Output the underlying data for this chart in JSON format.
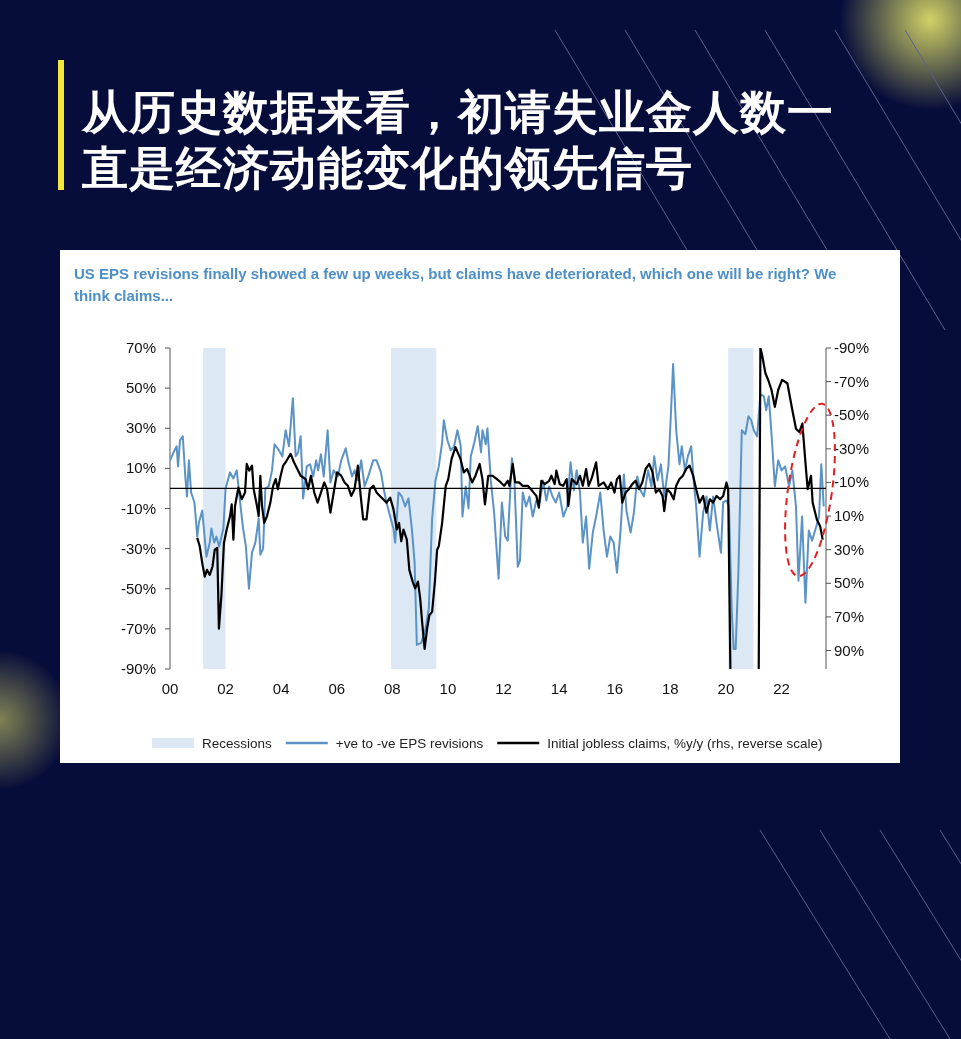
{
  "chart_data": {
    "type": "line",
    "title": "从历史数据来看，初请失业金人数一直是经济动能变化的领先信号",
    "subtitle": "US EPS revisions finally showed a few up weeks, but claims have deteriorated, which one will be right? We think claims...",
    "xlim": [
      2000,
      2023.6
    ],
    "xticks": [
      {
        "value": 2000,
        "label": "00"
      },
      {
        "value": 2002,
        "label": "02"
      },
      {
        "value": 2004,
        "label": "04"
      },
      {
        "value": 2006,
        "label": "06"
      },
      {
        "value": 2008,
        "label": "08"
      },
      {
        "value": 2010,
        "label": "10"
      },
      {
        "value": 2012,
        "label": "12"
      },
      {
        "value": 2014,
        "label": "14"
      },
      {
        "value": 2016,
        "label": "16"
      },
      {
        "value": 2018,
        "label": "18"
      },
      {
        "value": 2020,
        "label": "20"
      },
      {
        "value": 2022,
        "label": "22"
      }
    ],
    "ylim": [
      -90,
      70
    ],
    "yticks": [
      {
        "value": 70,
        "label": "70%"
      },
      {
        "value": 50,
        "label": "50%"
      },
      {
        "value": 30,
        "label": "30%"
      },
      {
        "value": 10,
        "label": "10%"
      },
      {
        "value": -10,
        "label": "-10%"
      },
      {
        "value": -30,
        "label": "-30%"
      },
      {
        "value": -50,
        "label": "-50%"
      },
      {
        "value": -70,
        "label": "-70%"
      },
      {
        "value": -90,
        "label": "-90%"
      }
    ],
    "y2lim": [
      101,
      -90
    ],
    "y2ticks": [
      {
        "value": -90,
        "label": "-90%"
      },
      {
        "value": -70,
        "label": "-70%"
      },
      {
        "value": -50,
        "label": "-50%"
      },
      {
        "value": -30,
        "label": "-30%"
      },
      {
        "value": -10,
        "label": "-10%"
      },
      {
        "value": 10,
        "label": "10%"
      },
      {
        "value": 30,
        "label": "30%"
      },
      {
        "value": 50,
        "label": "50%"
      },
      {
        "value": 70,
        "label": "70%"
      },
      {
        "value": 90,
        "label": "90%"
      }
    ],
    "bands": [
      {
        "axis": "x",
        "from": 2001.19,
        "to": 2002.0,
        "label": "Recessions",
        "color": "#dce9f5"
      },
      {
        "axis": "x",
        "from": 2007.95,
        "to": 2009.58,
        "color": "#dce9f5"
      },
      {
        "axis": "x",
        "from": 2020.08,
        "to": 2020.99,
        "color": "#dce9f5"
      }
    ],
    "ref_lines": [
      {
        "axis": "y",
        "value": 0,
        "color": "#000000"
      }
    ],
    "legend": "bottom",
    "series": [
      {
        "name": "+ve to -ve EPS revisions",
        "type": "line",
        "color": "#5b93c6",
        "x": [
          2000.0,
          2000.16,
          2000.24,
          2000.29,
          2000.36,
          2000.46,
          2000.55,
          2000.61,
          2000.68,
          2000.76,
          2000.88,
          2000.98,
          2001.04,
          2001.16,
          2001.31,
          2001.43,
          2001.49,
          2001.59,
          2001.67,
          2001.77,
          2001.92,
          2002.0,
          2002.16,
          2002.28,
          2002.4,
          2002.5,
          2002.62,
          2002.73,
          2002.84,
          2002.95,
          2003.07,
          2003.19,
          2003.25,
          2003.35,
          2003.43,
          2003.55,
          2003.67,
          2003.76,
          2003.92,
          2004.04,
          2004.16,
          2004.28,
          2004.42,
          2004.52,
          2004.61,
          2004.7,
          2004.79,
          2004.92,
          2005.04,
          2005.15,
          2005.26,
          2005.33,
          2005.43,
          2005.53,
          2005.67,
          2005.77,
          2005.89,
          2006.04,
          2006.16,
          2006.32,
          2006.42,
          2006.55,
          2006.64,
          2006.76,
          2006.88,
          2007.0,
          2007.13,
          2007.31,
          2007.43,
          2007.59,
          2007.67,
          2007.79,
          2007.92,
          2008.04,
          2008.1,
          2008.22,
          2008.34,
          2008.46,
          2008.58,
          2008.7,
          2008.8,
          2008.88,
          2009.04,
          2009.19,
          2009.31,
          2009.43,
          2009.55,
          2009.67,
          2009.79,
          2009.85,
          2009.98,
          2010.1,
          2010.22,
          2010.34,
          2010.46,
          2010.52,
          2010.64,
          2010.74,
          2010.82,
          2010.95,
          2011.07,
          2011.19,
          2011.24,
          2011.36,
          2011.42,
          2011.54,
          2011.66,
          2011.82,
          2011.94,
          2012.06,
          2012.15,
          2012.3,
          2012.39,
          2012.51,
          2012.59,
          2012.69,
          2012.81,
          2012.93,
          2013.05,
          2013.18,
          2013.3,
          2013.42,
          2013.54,
          2013.64,
          2013.76,
          2013.88,
          2014.0,
          2014.15,
          2014.29,
          2014.41,
          2014.53,
          2014.63,
          2014.75,
          2014.85,
          2014.97,
          2015.08,
          2015.21,
          2015.33,
          2015.48,
          2015.6,
          2015.72,
          2015.84,
          2015.96,
          2016.08,
          2016.21,
          2016.33,
          2016.42,
          2016.57,
          2016.69,
          2016.81,
          2016.93,
          2017.05,
          2017.2,
          2017.32,
          2017.42,
          2017.54,
          2017.66,
          2017.78,
          2017.93,
          2018.02,
          2018.1,
          2018.21,
          2018.33,
          2018.41,
          2018.53,
          2018.63,
          2018.75,
          2018.85,
          2018.93,
          2019.05,
          2019.18,
          2019.3,
          2019.42,
          2019.54,
          2019.66,
          2019.82,
          2019.9,
          2020.02,
          2020.11,
          2020.21,
          2020.28,
          2020.35,
          2020.45,
          2020.57,
          2020.7,
          2020.81,
          2020.91,
          2021.0,
          2021.12,
          2021.24,
          2021.36,
          2021.45,
          2021.54,
          2021.64,
          2021.76,
          2021.88,
          2022.0,
          2022.13,
          2022.27,
          2022.39,
          2022.52,
          2022.61,
          2022.74,
          2022.86,
          2022.98,
          2023.1,
          2023.25,
          2023.35,
          2023.43,
          2023.52
        ],
        "values": [
          14,
          19,
          21,
          11,
          24,
          26,
          6,
          -4,
          14,
          -2,
          -7,
          -24,
          -17,
          -11,
          -34,
          -27,
          -20,
          -27,
          -24,
          -29,
          -20,
          0,
          8,
          5,
          9,
          -4,
          -19,
          -29,
          -50,
          -32,
          -27,
          -15,
          -33,
          -30,
          0,
          1,
          9,
          22,
          19,
          16,
          29,
          21,
          45,
          16,
          18,
          26,
          -5,
          11,
          12,
          6,
          14,
          9,
          17,
          6,
          29,
          3,
          9,
          6,
          14,
          20,
          13,
          6,
          9,
          4,
          14,
          1,
          6,
          14,
          14,
          8,
          1,
          -7,
          -14,
          -20,
          -27,
          -2,
          -4,
          -9,
          -5,
          -20,
          -37,
          -78,
          -77,
          -70,
          -60,
          -15,
          4,
          11,
          23,
          34,
          24,
          19,
          21,
          29,
          21,
          -14,
          1,
          -10,
          16,
          23,
          31,
          18,
          29,
          22,
          30,
          4,
          -12,
          -45,
          -7,
          -24,
          -26,
          15,
          4,
          -39,
          -36,
          -2,
          -9,
          -4,
          -14,
          -6,
          -7,
          4,
          -6,
          1,
          -4,
          -7,
          -2,
          -14,
          -9,
          13,
          -1,
          9,
          -2,
          -27,
          -14,
          -40,
          -22,
          -14,
          -2,
          -21,
          -34,
          -24,
          -27,
          -42,
          -21,
          7,
          -11,
          -22,
          -12,
          6,
          -1,
          -4,
          9,
          1,
          16,
          4,
          12,
          -4,
          11,
          37,
          62,
          29,
          12,
          21,
          9,
          16,
          21,
          2,
          -9,
          -34,
          -12,
          -4,
          -21,
          -4,
          -17,
          -32,
          -7,
          -6,
          -9,
          -62,
          -80,
          -80,
          -41,
          29,
          27,
          36,
          34,
          29,
          26,
          47,
          46,
          39,
          46,
          27,
          1,
          14,
          9,
          11,
          1,
          9,
          -9,
          -46,
          -14,
          -57,
          -21,
          -26,
          -19,
          -14,
          12,
          -9
        ]
      },
      {
        "name": "Initial jobless claims, %y/y (rhs, reverse scale)",
        "type": "line",
        "color": "#000000",
        "axis": "y2",
        "x": [
          2000.98,
          2001.07,
          2001.16,
          2001.25,
          2001.33,
          2001.43,
          2001.53,
          2001.61,
          2001.7,
          2001.76,
          2001.85,
          2001.94,
          2002.04,
          2002.16,
          2002.22,
          2002.28,
          2002.34,
          2002.46,
          2002.58,
          2002.7,
          2002.76,
          2002.85,
          2002.95,
          2003.01,
          2003.13,
          2003.19,
          2003.25,
          2003.31,
          2003.39,
          2003.49,
          2003.61,
          2003.71,
          2003.8,
          2003.88,
          2003.98,
          2004.07,
          2004.16,
          2004.34,
          2004.46,
          2004.58,
          2004.7,
          2004.88,
          2004.97,
          2005.07,
          2005.19,
          2005.31,
          2005.43,
          2005.55,
          2005.65,
          2005.77,
          2005.89,
          2006.01,
          2006.16,
          2006.28,
          2006.4,
          2006.52,
          2006.64,
          2006.76,
          2006.86,
          2006.95,
          2007.07,
          2007.19,
          2007.32,
          2007.43,
          2007.55,
          2007.67,
          2007.79,
          2007.92,
          2008.04,
          2008.16,
          2008.24,
          2008.32,
          2008.4,
          2008.52,
          2008.61,
          2008.73,
          2008.82,
          2008.92,
          2009.0,
          2009.07,
          2009.16,
          2009.25,
          2009.33,
          2009.43,
          2009.53,
          2009.61,
          2009.67,
          2009.79,
          2009.92,
          2010.01,
          2010.13,
          2010.27,
          2010.45,
          2010.57,
          2010.69,
          2010.87,
          2010.99,
          2011.14,
          2011.24,
          2011.33,
          2011.45,
          2011.6,
          2011.76,
          2011.9,
          2012.02,
          2012.15,
          2012.21,
          2012.33,
          2012.42,
          2012.55,
          2012.69,
          2012.87,
          2013.03,
          2013.18,
          2013.27,
          2013.36,
          2013.48,
          2013.64,
          2013.72,
          2013.84,
          2013.9,
          2014.02,
          2014.15,
          2014.27,
          2014.33,
          2014.45,
          2014.63,
          2014.75,
          2014.85,
          2014.97,
          2015.06,
          2015.18,
          2015.33,
          2015.42,
          2015.6,
          2015.75,
          2015.87,
          2015.99,
          2016.08,
          2016.18,
          2016.27,
          2016.39,
          2016.51,
          2016.63,
          2016.75,
          2016.87,
          2016.99,
          2017.11,
          2017.24,
          2017.36,
          2017.48,
          2017.6,
          2017.72,
          2017.78,
          2017.88,
          2018.0,
          2018.12,
          2018.21,
          2018.33,
          2018.45,
          2018.57,
          2018.69,
          2018.82,
          2018.93,
          2019.05,
          2019.18,
          2019.3,
          2019.42,
          2019.54,
          2019.66,
          2019.79,
          2019.9,
          2020.02,
          2020.08,
          2020.16,
          2020.6,
          2021.18,
          2021.24,
          2021.3,
          2021.42,
          2021.52,
          2021.64,
          2021.76,
          2021.88,
          2022.02,
          2022.21,
          2022.39,
          2022.52,
          2022.64,
          2022.75,
          2022.86,
          2022.94,
          2023.06,
          2023.12,
          2023.27,
          2023.39,
          2023.48
        ],
        "values": [
          23,
          28,
          38,
          46,
          42,
          45,
          40,
          30,
          29,
          77,
          57,
          26,
          18,
          10,
          3,
          24,
          4,
          -7,
          0,
          -4,
          -21,
          -17,
          -20,
          -6,
          4,
          10,
          -14,
          4,
          14,
          10,
          2,
          -8,
          -12,
          -6,
          -14,
          -20,
          -22,
          -27,
          -22,
          -18,
          -14,
          -12,
          -6,
          -14,
          -4,
          2,
          -4,
          -10,
          -6,
          8,
          -4,
          -16,
          -14,
          -10,
          -8,
          -2,
          -6,
          -20,
          -2,
          12,
          12,
          -6,
          -8,
          -4,
          -2,
          0,
          2,
          -1,
          6,
          18,
          14,
          25,
          18,
          24,
          42,
          49,
          53,
          49,
          59,
          73,
          89,
          77,
          69,
          67,
          49,
          30,
          28,
          14,
          -8,
          -12,
          -24,
          -31,
          -24,
          -16,
          -18,
          -10,
          -14,
          -21,
          -12,
          3,
          -14,
          -14,
          -12,
          -10,
          -8,
          -11,
          -8,
          -21,
          -10,
          -10,
          -8,
          -8,
          -5,
          -2,
          5,
          -11,
          -9,
          -11,
          -14,
          -9,
          -17,
          -9,
          -8,
          -12,
          4,
          -12,
          -9,
          -14,
          -8,
          -18,
          -8,
          -13,
          -22,
          -8,
          -10,
          -6,
          -10,
          -4,
          -12,
          -14,
          2,
          -4,
          -6,
          -9,
          -11,
          -6,
          -10,
          -18,
          -21,
          -16,
          -4,
          -6,
          -2,
          7,
          -6,
          -4,
          0,
          -8,
          -12,
          -14,
          -18,
          -20,
          -14,
          -6,
          2,
          -2,
          8,
          0,
          2,
          -2,
          0,
          -2,
          -10,
          -6,
          101,
          null,
          101,
          -90,
          -86,
          -75,
          -71,
          -65,
          -55,
          -65,
          -71,
          -69,
          -53,
          -42,
          -40,
          -45,
          -22,
          -6,
          -14,
          2,
          12,
          16,
          24
        ]
      }
    ]
  }
}
